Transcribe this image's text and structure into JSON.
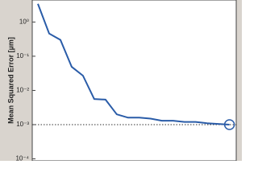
{
  "chart_data": {
    "type": "line",
    "y_label": "Mean Squared Error [µm]",
    "x": [
      0,
      1,
      2,
      3,
      4,
      5,
      6,
      7,
      8,
      9,
      10,
      11,
      12,
      13,
      14,
      15,
      16,
      17
    ],
    "series": [
      {
        "color": "#2a5ca8",
        "values": [
          3.4,
          0.46,
          0.3,
          0.049,
          0.027,
          0.0056,
          0.0054,
          0.002,
          0.0016,
          0.0016,
          0.0015,
          0.0013,
          0.0013,
          0.0012,
          0.0012,
          0.0011,
          0.00105,
          0.001
        ]
      }
    ],
    "threshold": 0.001,
    "xlim": [
      -0.5,
      17.6
    ],
    "ylim": [
      8.75e-05,
      4.4
    ],
    "log_y": true,
    "yticks": [
      {
        "value": 1,
        "label": "10⁰"
      },
      {
        "value": 0.1,
        "label": "10⁻¹"
      },
      {
        "value": 0.01,
        "label": "10⁻²"
      },
      {
        "value": 0.001,
        "label": "10⁻³"
      },
      {
        "value": 0.0001,
        "label": "10⁻⁴"
      }
    ]
  }
}
